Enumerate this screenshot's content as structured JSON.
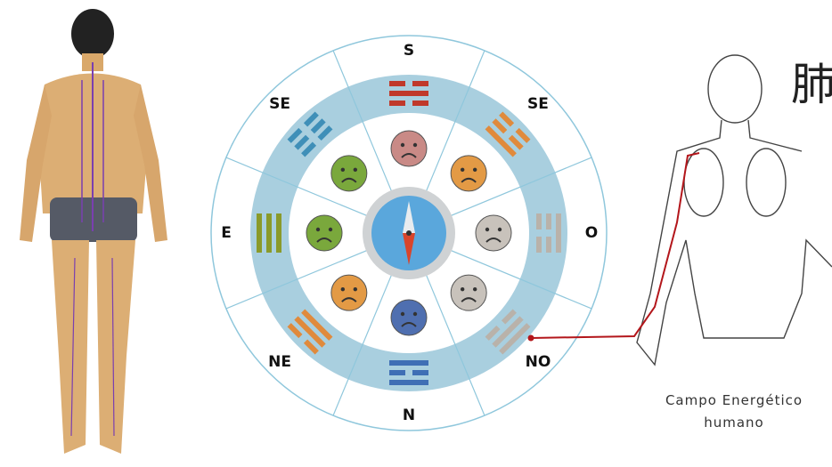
{
  "directions": [
    "S",
    "SE",
    "O",
    "NO",
    "N",
    "NE",
    "E",
    "SE"
  ],
  "caption": {
    "line1": "Campo Energético",
    "line2": "humano"
  },
  "character": "肺"
}
